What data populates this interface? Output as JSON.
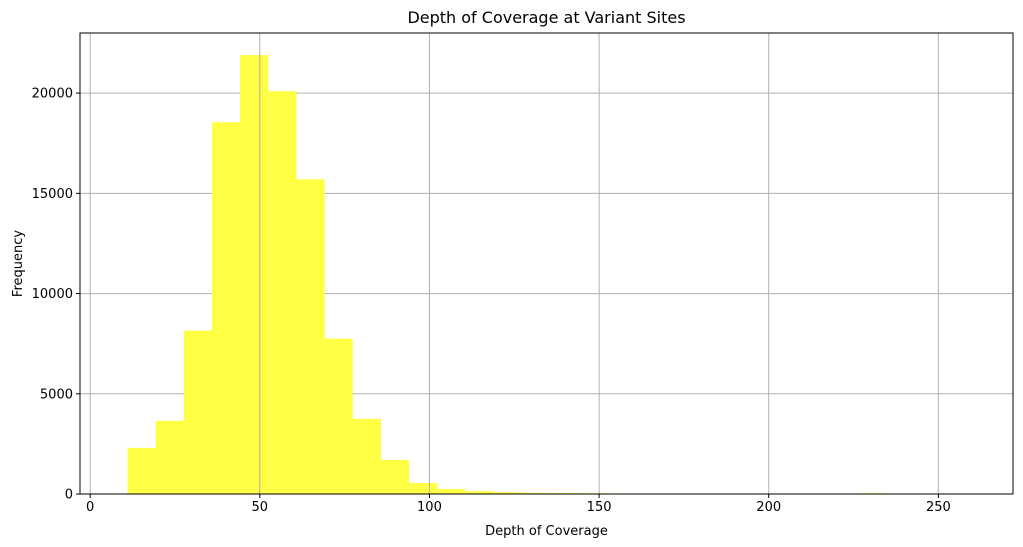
{
  "chart_data": {
    "type": "bar",
    "title": "Depth of Coverage at Variant Sites",
    "xlabel": "Depth of Coverage",
    "ylabel": "Frequency",
    "xlim": [
      -3,
      272
    ],
    "ylim": [
      0,
      23000
    ],
    "xticks": [
      0,
      50,
      100,
      150,
      200,
      250
    ],
    "yticks": [
      0,
      5000,
      10000,
      15000,
      20000
    ],
    "grid": true,
    "bar_color": "#ffff44",
    "grid_color": "#b0b0b0",
    "bin_edges": [
      11,
      19.3,
      27.6,
      35.9,
      44.2,
      52.5,
      60.8,
      69.1,
      77.4,
      85.7,
      94,
      102.3,
      110.6,
      118.9,
      127.2,
      135.5,
      143.8,
      152.1,
      160.4,
      168.7,
      177,
      185.3,
      193.6,
      201.9,
      210.2,
      218.5,
      226.8,
      235.1,
      243.4,
      251.7,
      260
    ],
    "values": [
      2300,
      3650,
      8150,
      18550,
      21900,
      20100,
      15700,
      7750,
      3750,
      1700,
      550,
      250,
      140,
      90,
      60,
      50,
      40,
      30,
      25,
      20,
      20,
      15,
      15,
      15,
      15,
      15,
      40,
      15,
      10,
      10
    ]
  }
}
